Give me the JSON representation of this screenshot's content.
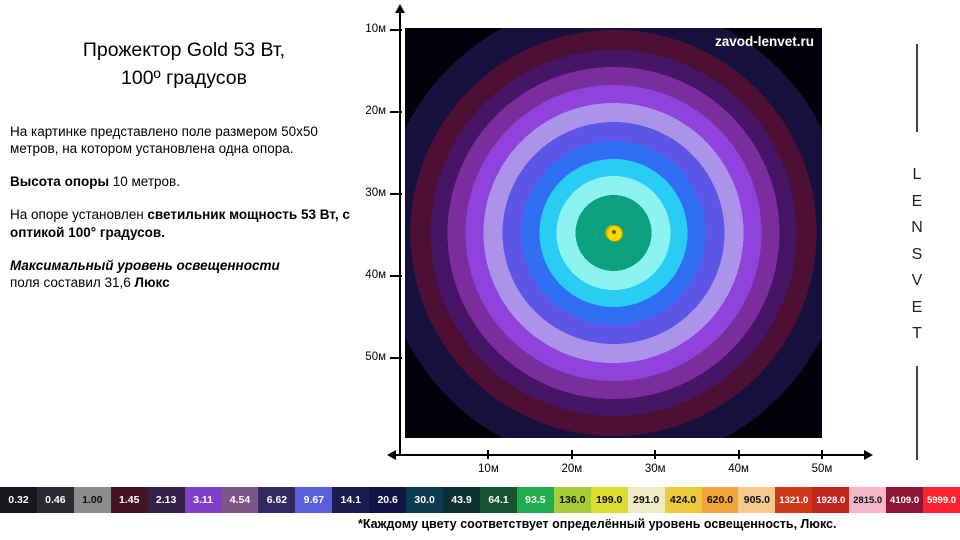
{
  "title": {
    "line1": "Прожектор Gold 53 Вт,",
    "line2": "100º градусов"
  },
  "description": {
    "p1": "На картинке представлено  поле размером 50х50 метров, на котором установлена  одна опора.",
    "p2_bold": "Высота опоры",
    "p2_rest": " 10 метров.",
    "p3_pre": "На опоре установлен  ",
    "p3_bold": "светильник мощность 53 Вт, с оптикой 100° градусов.",
    "p4_bolditalic": "Максимальный уровень освещенности",
    "p4_rest": "поля  составил  31,6 ",
    "p4_bold": "Люкс"
  },
  "watermark": "zavod-lenvet.ru",
  "brand": {
    "letters": [
      "L",
      "E",
      "N",
      "S",
      "V",
      "E",
      "T"
    ]
  },
  "axes": {
    "y_labels": [
      "10м",
      "20м",
      "30м",
      "40м",
      "50м"
    ],
    "x_labels": [
      "10м",
      "20м",
      "30м",
      "40м",
      "50м"
    ]
  },
  "scale": {
    "items": [
      {
        "label": "0.32",
        "color": "#15151a",
        "text": "#ffffff"
      },
      {
        "label": "0.46",
        "color": "#2b2b33",
        "text": "#ffffff"
      },
      {
        "label": "1.00",
        "color": "#8c8c8c",
        "text": "#111111"
      },
      {
        "label": "1.45",
        "color": "#451325",
        "text": "#ffffff"
      },
      {
        "label": "2.13",
        "color": "#35204a",
        "text": "#ffffff"
      },
      {
        "label": "3.11",
        "color": "#8040c8",
        "text": "#ffffff"
      },
      {
        "label": "4.54",
        "color": "#7e5788",
        "text": "#ffffff"
      },
      {
        "label": "6.62",
        "color": "#342a62",
        "text": "#ffffff"
      },
      {
        "label": "9.67",
        "color": "#5a5ed8",
        "text": "#ffffff"
      },
      {
        "label": "14.1",
        "color": "#1a1c52",
        "text": "#ffffff"
      },
      {
        "label": "20.6",
        "color": "#101444",
        "text": "#ffffff"
      },
      {
        "label": "30.0",
        "color": "#0e3a52",
        "text": "#ffffff"
      },
      {
        "label": "43.9",
        "color": "#0c2f33",
        "text": "#ffffff"
      },
      {
        "label": "64.1",
        "color": "#14542e",
        "text": "#ffffff"
      },
      {
        "label": "93.5",
        "color": "#1fae4e",
        "text": "#ffffff"
      },
      {
        "label": "136.0",
        "color": "#a6cc38",
        "text": "#111111"
      },
      {
        "label": "199.0",
        "color": "#dcdd30",
        "text": "#111111"
      },
      {
        "label": "291.0",
        "color": "#f0ecc2",
        "text": "#111111"
      },
      {
        "label": "424.0",
        "color": "#edc93c",
        "text": "#111111"
      },
      {
        "label": "620.0",
        "color": "#f0a43a",
        "text": "#111111"
      },
      {
        "label": "905.0",
        "color": "#f3c98e",
        "text": "#111111"
      },
      {
        "label": "1321.0",
        "color": "#cf3a18",
        "text": "#ffffff"
      },
      {
        "label": "1928.0",
        "color": "#c3241f",
        "text": "#ffffff"
      },
      {
        "label": "2815.0",
        "color": "#f3b8c8",
        "text": "#111111"
      },
      {
        "label": "4109.0",
        "color": "#8c1535",
        "text": "#ffffff"
      },
      {
        "label": "5999.0",
        "color": "#ff2030",
        "text": "#ffffff"
      }
    ]
  },
  "caption": "*Каждому цвету  соответствует  определённый уровень освещенность, Люкс.",
  "chart_data": {
    "type": "heatmap",
    "title": "Прожектор Gold 53 Вт, 100º градусов",
    "field_size_m": [
      50,
      50
    ],
    "pole_height_m": 10,
    "luminaire_power_w": 53,
    "optics_deg": 100,
    "max_illuminance_lux": 31.6,
    "units": "Люкс",
    "x_ticks": [
      "10м",
      "20м",
      "30м",
      "40м",
      "50м"
    ],
    "y_ticks": [
      "10м",
      "20м",
      "30м",
      "40м",
      "50м"
    ],
    "legend_levels_lux": [
      0.32,
      0.46,
      1.0,
      1.45,
      2.13,
      3.11,
      4.54,
      6.62,
      9.67,
      14.1,
      20.6,
      30.0,
      43.9,
      64.1,
      93.5,
      136.0,
      199.0,
      291.0,
      424.0,
      620.0,
      905.0,
      1321.0,
      1928.0,
      2815.0,
      4109.0,
      5999.0
    ],
    "rings": [
      {
        "color": "#ffd800",
        "r": 8
      },
      {
        "color": "#0aa17c",
        "r": 38
      },
      {
        "color": "#8cf2ef",
        "r": 57
      },
      {
        "color": "#29cdf4",
        "r": 74
      },
      {
        "color": "#2f6ef2",
        "r": 92
      },
      {
        "color": "#5c55e6",
        "r": 111
      },
      {
        "color": "#ab93ea",
        "r": 130
      },
      {
        "color": "#8f43dc",
        "r": 148
      },
      {
        "color": "#7b2d9e",
        "r": 166
      },
      {
        "color": "#471566",
        "r": 183
      },
      {
        "color": "#4d0f33",
        "r": 203
      },
      {
        "color": "#16113c",
        "r": 233
      },
      {
        "color": "#020008",
        "r": 600
      }
    ]
  }
}
